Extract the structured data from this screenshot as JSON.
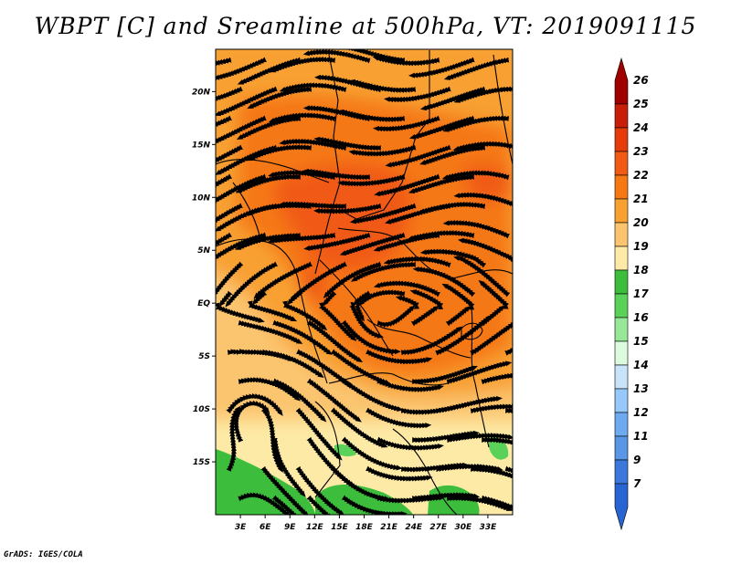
{
  "title": "WBPT [C] and Sreamline at 500hPa, VT: 2019091115",
  "credit": "GrADS: IGES/COLA",
  "chart_data": {
    "type": "heatmap",
    "variable": "WBPT",
    "units": "C",
    "level": "500hPa",
    "valid_time": "2019091115",
    "overlay": "streamline",
    "x_range": [
      0,
      36
    ],
    "y_range": [
      -20,
      24
    ],
    "x_ticks": [
      {
        "value": 3,
        "label": "3E"
      },
      {
        "value": 6,
        "label": "6E"
      },
      {
        "value": 9,
        "label": "9E"
      },
      {
        "value": 12,
        "label": "12E"
      },
      {
        "value": 15,
        "label": "15E"
      },
      {
        "value": 18,
        "label": "18E"
      },
      {
        "value": 21,
        "label": "21E"
      },
      {
        "value": 24,
        "label": "24E"
      },
      {
        "value": 27,
        "label": "27E"
      },
      {
        "value": 30,
        "label": "30E"
      },
      {
        "value": 33,
        "label": "33E"
      }
    ],
    "y_ticks": [
      {
        "value": 20,
        "label": "20N"
      },
      {
        "value": 15,
        "label": "15N"
      },
      {
        "value": 10,
        "label": "10N"
      },
      {
        "value": 5,
        "label": "5N"
      },
      {
        "value": 0,
        "label": "EQ"
      },
      {
        "value": -5,
        "label": "5S"
      },
      {
        "value": -10,
        "label": "10S"
      },
      {
        "value": -15,
        "label": "15S"
      }
    ],
    "colorbar": {
      "levels": [
        "26",
        "25",
        "24",
        "23",
        "22",
        "21",
        "20",
        "19",
        "18",
        "17",
        "16",
        "15",
        "14",
        "13",
        "12",
        "11",
        "9",
        "7"
      ],
      "colors": [
        "#a00000",
        "#c81e0a",
        "#e63c0a",
        "#f05a14",
        "#f57814",
        "#f8a032",
        "#fbc46e",
        "#fdeaa6",
        "#3cbe3c",
        "#5ad25a",
        "#98e698",
        "#dcfadc",
        "#c8e4fa",
        "#96c8fa",
        "#6eaaf0",
        "#5a96e6",
        "#3c78dc",
        "#2864d2"
      ]
    },
    "field_colors": {
      "c18": "#fdeaa6",
      "c19": "#fbc46e",
      "c20": "#f8a032",
      "c21": "#f57814",
      "c22": "#f05a14",
      "green": "#3cbe3c",
      "green_light": "#5ad25a"
    }
  }
}
